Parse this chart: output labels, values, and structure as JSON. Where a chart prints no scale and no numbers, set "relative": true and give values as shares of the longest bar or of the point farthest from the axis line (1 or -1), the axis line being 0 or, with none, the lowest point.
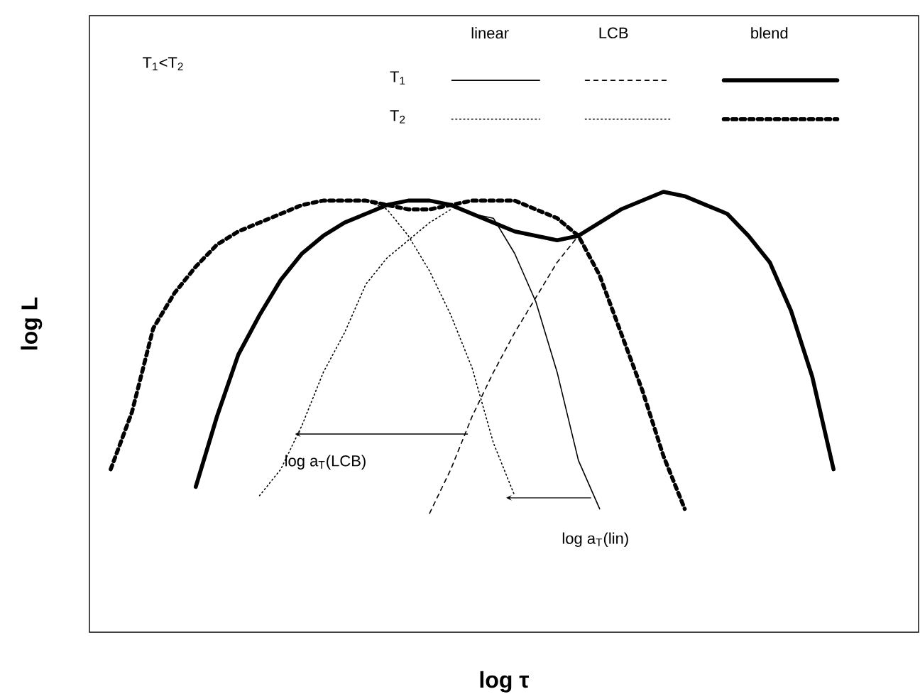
{
  "chart_data": {
    "type": "line",
    "relative": true,
    "xlabel": "log τ",
    "ylabel": "log L",
    "categories": [
      null,
      null,
      null,
      null,
      null,
      null,
      null,
      null,
      null,
      null,
      null,
      null,
      null,
      null,
      null,
      null,
      null,
      null,
      null,
      null,
      null,
      null,
      null,
      null,
      null,
      null,
      null,
      null,
      null,
      null,
      null,
      null,
      null,
      null,
      null,
      null,
      null,
      null,
      null,
      null
    ],
    "annotations": [
      "T$_{1}$<T$_{2}$",
      "linear",
      "LCB",
      "blend",
      "T$_{1}$",
      "T$_{2}$",
      "log a$_{T}$(LCB)",
      "log a$_{T}$(lin)"
    ],
    "series": [
      {
        "color": "#000000",
        "line_style": "solid",
        "values": [
          null,
          null,
          null,
          null,
          null,
          null,
          null,
          null,
          null,
          null,
          null,
          null,
          null,
          0.95,
          0.97,
          0.98,
          0.98,
          0.97,
          0.95,
          0.94,
          0.86,
          0.75,
          0.59,
          0.39,
          0.28,
          null,
          null,
          null,
          null,
          null,
          null,
          null,
          null,
          null,
          null,
          null,
          null,
          null,
          null,
          null
        ]
      },
      {
        "color": "#000000",
        "line_style": "dotted",
        "values": [
          null,
          null,
          null,
          null,
          null,
          null,
          null,
          null,
          null,
          null,
          null,
          0.98,
          0.98,
          0.98,
          0.96,
          0.9,
          0.82,
          0.72,
          0.6,
          0.43,
          0.31,
          null,
          null,
          null,
          null,
          null,
          null,
          null,
          null,
          null,
          null,
          null,
          null,
          null,
          null,
          null,
          null,
          null,
          null,
          null
        ]
      },
      {
        "color": "#000000",
        "line_style": "dashed",
        "values": [
          null,
          null,
          null,
          null,
          null,
          null,
          null,
          null,
          null,
          null,
          null,
          null,
          null,
          null,
          null,
          null,
          0.27,
          0.37,
          0.49,
          0.59,
          0.68,
          0.76,
          0.84,
          0.9,
          null,
          null,
          null,
          null,
          null,
          null,
          null,
          null,
          null,
          null,
          null,
          null,
          null,
          null,
          null,
          null
        ]
      },
      {
        "color": "#000000",
        "line_style": "dotted",
        "values": [
          null,
          null,
          null,
          null,
          null,
          null,
          null,
          null,
          0.31,
          0.37,
          0.47,
          0.59,
          0.68,
          0.79,
          0.85,
          0.89,
          0.93,
          0.96,
          null,
          null,
          null,
          null,
          null,
          null,
          null,
          null,
          null,
          null,
          null,
          null,
          null,
          null,
          null,
          null,
          null,
          null,
          null,
          null,
          null,
          null
        ]
      },
      {
        "color": "#000000",
        "line_style": "solid",
        "values": [
          null,
          null,
          null,
          null,
          null,
          0.33,
          0.49,
          0.63,
          0.72,
          0.8,
          0.86,
          0.9,
          0.93,
          0.95,
          0.97,
          0.98,
          0.98,
          0.97,
          0.95,
          0.93,
          0.91,
          0.9,
          0.89,
          0.9,
          0.93,
          0.96,
          0.98,
          1.0,
          0.99,
          0.97,
          0.95,
          0.9,
          0.84,
          0.73,
          0.58,
          0.37,
          null,
          null,
          null,
          null
        ]
      },
      {
        "color": "#000000",
        "line_style": "dashed",
        "values": [
          null,
          0.37,
          0.5,
          0.69,
          0.77,
          0.83,
          0.88,
          0.91,
          0.93,
          0.95,
          0.97,
          0.98,
          0.98,
          0.98,
          0.97,
          0.96,
          0.96,
          0.97,
          0.98,
          0.98,
          0.98,
          0.96,
          0.94,
          0.9,
          0.81,
          0.68,
          0.55,
          0.4,
          0.28,
          null,
          null,
          null,
          null,
          null,
          null,
          null,
          null,
          null,
          null,
          null
        ]
      }
    ]
  }
}
